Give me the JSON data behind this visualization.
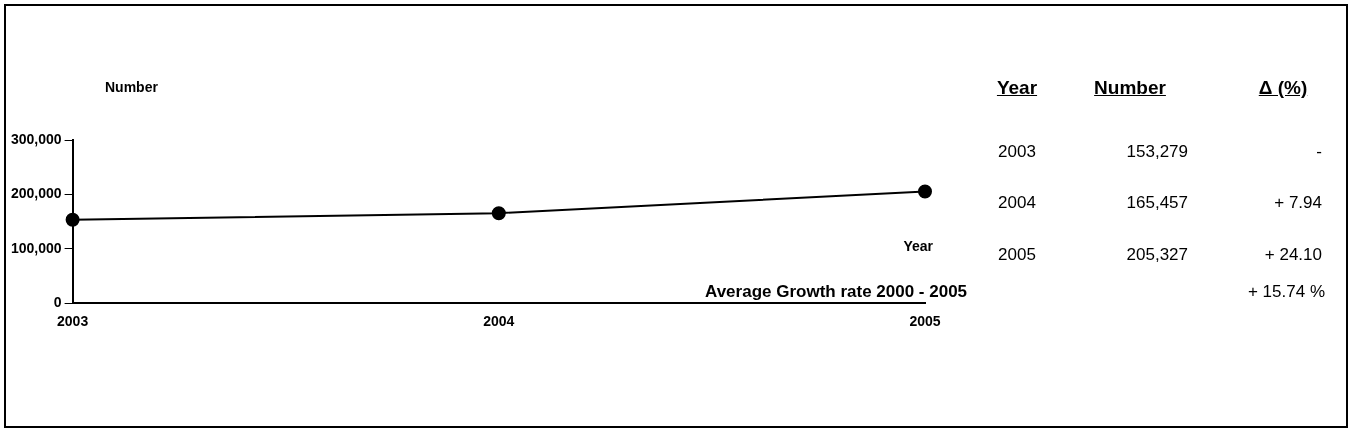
{
  "chart_data": {
    "type": "line",
    "xlabel": "Year",
    "ylabel": "Number",
    "categories": [
      "2003",
      "2004",
      "2005"
    ],
    "series": [
      {
        "color": "#000000",
        "values": [
          153279,
          165457,
          205327
        ]
      }
    ],
    "value_labels": [
      "153,279",
      "165,457",
      "205,327"
    ],
    "ylim": [
      0,
      300000
    ],
    "yticks": [
      {
        "value": 0,
        "label": "0"
      },
      {
        "value": 100000,
        "label": "100,000"
      },
      {
        "value": 200000,
        "label": "200,000"
      },
      {
        "value": 300000,
        "label": "300,000"
      }
    ],
    "grid": false,
    "legend": false,
    "marker": "circle",
    "line_style": "solid",
    "annotations": [
      "Year",
      "Number",
      "Δ (%)",
      "-",
      "+ 7.94",
      "+ 24.10",
      "Average Growth rate 2000 - 2005",
      "+ 15.74 %"
    ]
  }
}
